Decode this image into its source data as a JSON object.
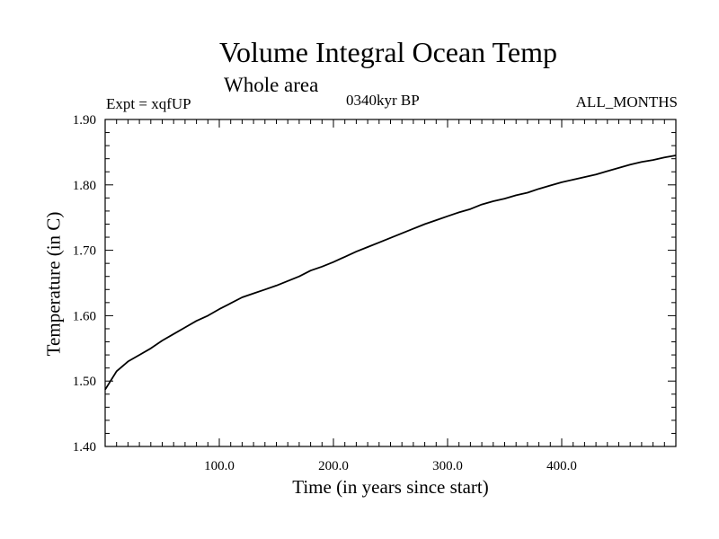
{
  "chart_data": {
    "type": "line",
    "title": "Volume Integral Ocean Temp",
    "subtitle": "Whole area",
    "experiment": "Expt = xqfUP",
    "period": "0340kyr BP",
    "months": "ALL_MONTHS",
    "xlabel": "Time (in years since start)",
    "ylabel": "Temperature (in C)",
    "xlim": [
      0,
      500
    ],
    "ylim": [
      1.4,
      1.9
    ],
    "xticks": [
      100,
      200,
      300,
      400
    ],
    "xtick_labels": [
      "100.0",
      "200.0",
      "300.0",
      "400.0"
    ],
    "yticks": [
      1.4,
      1.5,
      1.6,
      1.7,
      1.8,
      1.9
    ],
    "ytick_labels": [
      "1.40",
      "1.50",
      "1.60",
      "1.70",
      "1.80",
      "1.90"
    ],
    "grid": false,
    "series": [
      {
        "name": "Volume Integral Ocean Temp",
        "x": [
          0,
          10,
          20,
          30,
          40,
          50,
          60,
          70,
          80,
          90,
          100,
          110,
          120,
          130,
          140,
          150,
          160,
          170,
          180,
          190,
          200,
          210,
          220,
          230,
          240,
          250,
          260,
          270,
          280,
          290,
          300,
          310,
          320,
          330,
          340,
          350,
          360,
          370,
          380,
          390,
          400,
          410,
          420,
          430,
          440,
          450,
          460,
          470,
          480,
          490,
          500
        ],
        "values": [
          1.487,
          1.515,
          1.53,
          1.54,
          1.55,
          1.562,
          1.572,
          1.582,
          1.592,
          1.6,
          1.61,
          1.619,
          1.628,
          1.634,
          1.64,
          1.646,
          1.653,
          1.66,
          1.669,
          1.675,
          1.682,
          1.69,
          1.698,
          1.705,
          1.712,
          1.719,
          1.726,
          1.733,
          1.74,
          1.746,
          1.752,
          1.758,
          1.763,
          1.77,
          1.775,
          1.779,
          1.784,
          1.788,
          1.794,
          1.799,
          1.804,
          1.808,
          1.812,
          1.816,
          1.821,
          1.826,
          1.831,
          1.835,
          1.838,
          1.842,
          1.845
        ]
      }
    ]
  }
}
